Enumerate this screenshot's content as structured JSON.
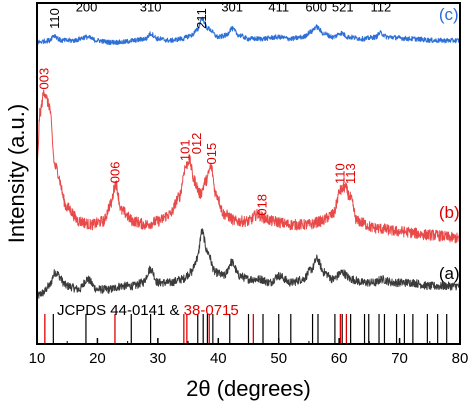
{
  "chart_data": {
    "type": "line",
    "xlabel": "2θ (degrees)",
    "ylabel": "Intensity (a.u.)",
    "xlim": [
      10,
      80
    ],
    "xticks": [
      10,
      20,
      30,
      40,
      50,
      60,
      70,
      80
    ],
    "y_tick_labels": false,
    "series": [
      {
        "name": "(a)",
        "color": "#3a3a3a",
        "baseline": 0.14,
        "noise": 0.012,
        "x": [
          10,
          11,
          12,
          13,
          15,
          17,
          18.3,
          20,
          22,
          24,
          26,
          27.5,
          28.8,
          30,
          32,
          34,
          35.5,
          36.5,
          37.3,
          38.2,
          39.5,
          41,
          42.2,
          43.5,
          45,
          47,
          48.5,
          50,
          52,
          54,
          55.5,
          56.3,
          57.5,
          59,
          60.5,
          62,
          64,
          66,
          67,
          69,
          72,
          75,
          80
        ],
        "y": [
          0.14,
          0.15,
          0.17,
          0.21,
          0.17,
          0.16,
          0.19,
          0.16,
          0.16,
          0.17,
          0.17,
          0.18,
          0.22,
          0.18,
          0.18,
          0.19,
          0.21,
          0.25,
          0.33,
          0.27,
          0.21,
          0.2,
          0.24,
          0.2,
          0.19,
          0.19,
          0.18,
          0.2,
          0.18,
          0.19,
          0.22,
          0.25,
          0.21,
          0.19,
          0.21,
          0.19,
          0.18,
          0.18,
          0.19,
          0.18,
          0.18,
          0.17,
          0.17
        ]
      },
      {
        "name": "(b)",
        "color": "#e84a4a",
        "baseline": 0.31,
        "noise": 0.016,
        "x": [
          10,
          10.5,
          11.2,
          12,
          13,
          15,
          17,
          19,
          21,
          22.2,
          23,
          24,
          26,
          28,
          30,
          32,
          33.5,
          34.6,
          35.2,
          36,
          37,
          38,
          38.8,
          39.6,
          41,
          43,
          45,
          46.5,
          47.5,
          49,
          52,
          55,
          57,
          59,
          60.2,
          61,
          61.8,
          63,
          66,
          70,
          75,
          80
        ],
        "y": [
          0.52,
          0.68,
          0.74,
          0.7,
          0.52,
          0.4,
          0.36,
          0.35,
          0.36,
          0.41,
          0.47,
          0.39,
          0.36,
          0.35,
          0.36,
          0.38,
          0.43,
          0.52,
          0.54,
          0.48,
          0.44,
          0.48,
          0.52,
          0.44,
          0.38,
          0.36,
          0.36,
          0.38,
          0.37,
          0.36,
          0.35,
          0.35,
          0.36,
          0.38,
          0.45,
          0.46,
          0.43,
          0.36,
          0.34,
          0.33,
          0.32,
          0.31
        ]
      },
      {
        "name": "(c)",
        "color": "#2d6fd6",
        "baseline": 0.88,
        "noise": 0.007,
        "x": [
          10,
          12,
          12.8,
          14,
          16,
          18.2,
          20,
          22,
          24,
          26,
          28,
          28.8,
          30,
          32,
          34,
          35.5,
          36.5,
          37.3,
          38.3,
          40,
          41.3,
          42.2,
          43.5,
          45,
          47,
          50,
          52,
          54,
          55.3,
          56.2,
          57.5,
          59,
          60.3,
          61.5,
          64,
          66,
          66.8,
          68,
          72,
          76,
          80
        ],
        "y": [
          0.885,
          0.89,
          0.905,
          0.89,
          0.89,
          0.9,
          0.89,
          0.885,
          0.885,
          0.89,
          0.895,
          0.91,
          0.895,
          0.89,
          0.895,
          0.905,
          0.92,
          0.955,
          0.925,
          0.9,
          0.905,
          0.925,
          0.905,
          0.895,
          0.895,
          0.9,
          0.895,
          0.9,
          0.915,
          0.93,
          0.91,
          0.9,
          0.912,
          0.9,
          0.895,
          0.9,
          0.912,
          0.9,
          0.895,
          0.89,
          0.89
        ]
      }
    ],
    "series_labels": [
      {
        "text": "(c)",
        "x": 76.5,
        "y": 0.95,
        "color": "#2d6fd6"
      },
      {
        "text": "(b)",
        "x": 76.5,
        "y": 0.37,
        "color": "#e00000"
      },
      {
        "text": "(a)",
        "x": 76.5,
        "y": 0.19,
        "color": "#000000"
      }
    ],
    "annotations_black": [
      {
        "text": "110",
        "x": 13.0,
        "y": 0.985,
        "rotate": -90
      },
      {
        "text": "200",
        "x": 18.2,
        "y": 0.975,
        "rotate": 0
      },
      {
        "text": "310",
        "x": 28.8,
        "y": 0.975,
        "rotate": 0
      },
      {
        "text": "211",
        "x": 37.3,
        "y": 0.985,
        "rotate": -90
      },
      {
        "text": "301",
        "x": 42.3,
        "y": 0.975,
        "rotate": 0
      },
      {
        "text": "411",
        "x": 50.0,
        "y": 0.975,
        "rotate": 0
      },
      {
        "text": "600",
        "x": 56.2,
        "y": 0.975,
        "rotate": 0
      },
      {
        "text": "521",
        "x": 60.6,
        "y": 0.975,
        "rotate": 0
      },
      {
        "text": "112",
        "x": 66.9,
        "y": 0.975,
        "rotate": 0
      }
    ],
    "annotations_red": [
      {
        "text": "003",
        "x": 11.2,
        "y": 0.81,
        "rotate": -90
      },
      {
        "text": "006",
        "x": 23.0,
        "y": 0.535,
        "rotate": -90
      },
      {
        "text": "101",
        "x": 34.6,
        "y": 0.6,
        "rotate": -90
      },
      {
        "text": "012",
        "x": 36.5,
        "y": 0.62,
        "rotate": -90
      },
      {
        "text": "015",
        "x": 39.0,
        "y": 0.59,
        "rotate": -90
      },
      {
        "text": "018",
        "x": 47.3,
        "y": 0.44,
        "rotate": -90
      },
      {
        "text": "110",
        "x": 60.2,
        "y": 0.53,
        "rotate": -90
      },
      {
        "text": "113",
        "x": 62.0,
        "y": 0.53,
        "rotate": -90
      }
    ],
    "reference_label": {
      "black_part": "JCPDS 44-0141 & ",
      "red_part": "38-0715",
      "x": 13.3,
      "y": 0.1
    },
    "reference_ticks_black": [
      12.7,
      18.1,
      25.6,
      28.8,
      36.6,
      37.5,
      38.2,
      39.1,
      41.9,
      45.0,
      47.4,
      50.0,
      52.0,
      55.6,
      56.5,
      59.3,
      60.5,
      61.9,
      64.2,
      64.9,
      66.6,
      67.5,
      69.5,
      70.8,
      72.2,
      74.6,
      76.3,
      77.8
    ],
    "reference_ticks_red": [
      11.3,
      22.9,
      34.3,
      34.8,
      38.5,
      45.8,
      60.2,
      61.2
    ]
  }
}
